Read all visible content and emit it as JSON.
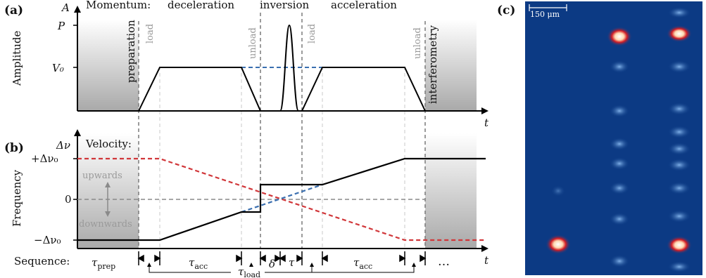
{
  "panels": {
    "a": "(a)",
    "b": "(b)",
    "c": "(c)"
  },
  "top": {
    "y_axis_symbol": "A",
    "y_label": "Amplitude",
    "x_axis_symbol": "t",
    "ticks": {
      "P": "P",
      "V0": "V₀"
    },
    "momentum": {
      "label": "Momentum:",
      "phases": [
        "deceleration",
        "inversion",
        "acceleration"
      ]
    },
    "regions": {
      "preparation": "preparation",
      "interferometry": "interferometry"
    },
    "marks": {
      "load1": "load",
      "unload1": "unload",
      "load2": "load",
      "unload2": "unload"
    }
  },
  "bottom": {
    "y_axis_symbol": "Δν",
    "y_label": "Frequency",
    "x_axis_symbol": "t",
    "velocity_label": "Velocity:",
    "ticks": {
      "plus": "+Δν₀",
      "zero": "0",
      "minus": "−Δν₀"
    },
    "directions": {
      "up": "upwards",
      "down": "downwards"
    },
    "sequence": {
      "label": "Sequence:",
      "tau_prep": "τ",
      "tau_prep_sub": "prep",
      "tau_acc1": "τ",
      "tau_acc_sub": "acc",
      "delta": "δ",
      "tau": "τ",
      "tau_acc2": "τ",
      "ellipsis": "…",
      "tau_load": "τ",
      "tau_load_sub": "load"
    }
  },
  "image_c": {
    "scale_label": "150 μm"
  },
  "colors": {
    "red": "#d1373a",
    "blue": "#3a6fb0",
    "gray": "#888888",
    "image_bg": "#0e3f8a"
  }
}
